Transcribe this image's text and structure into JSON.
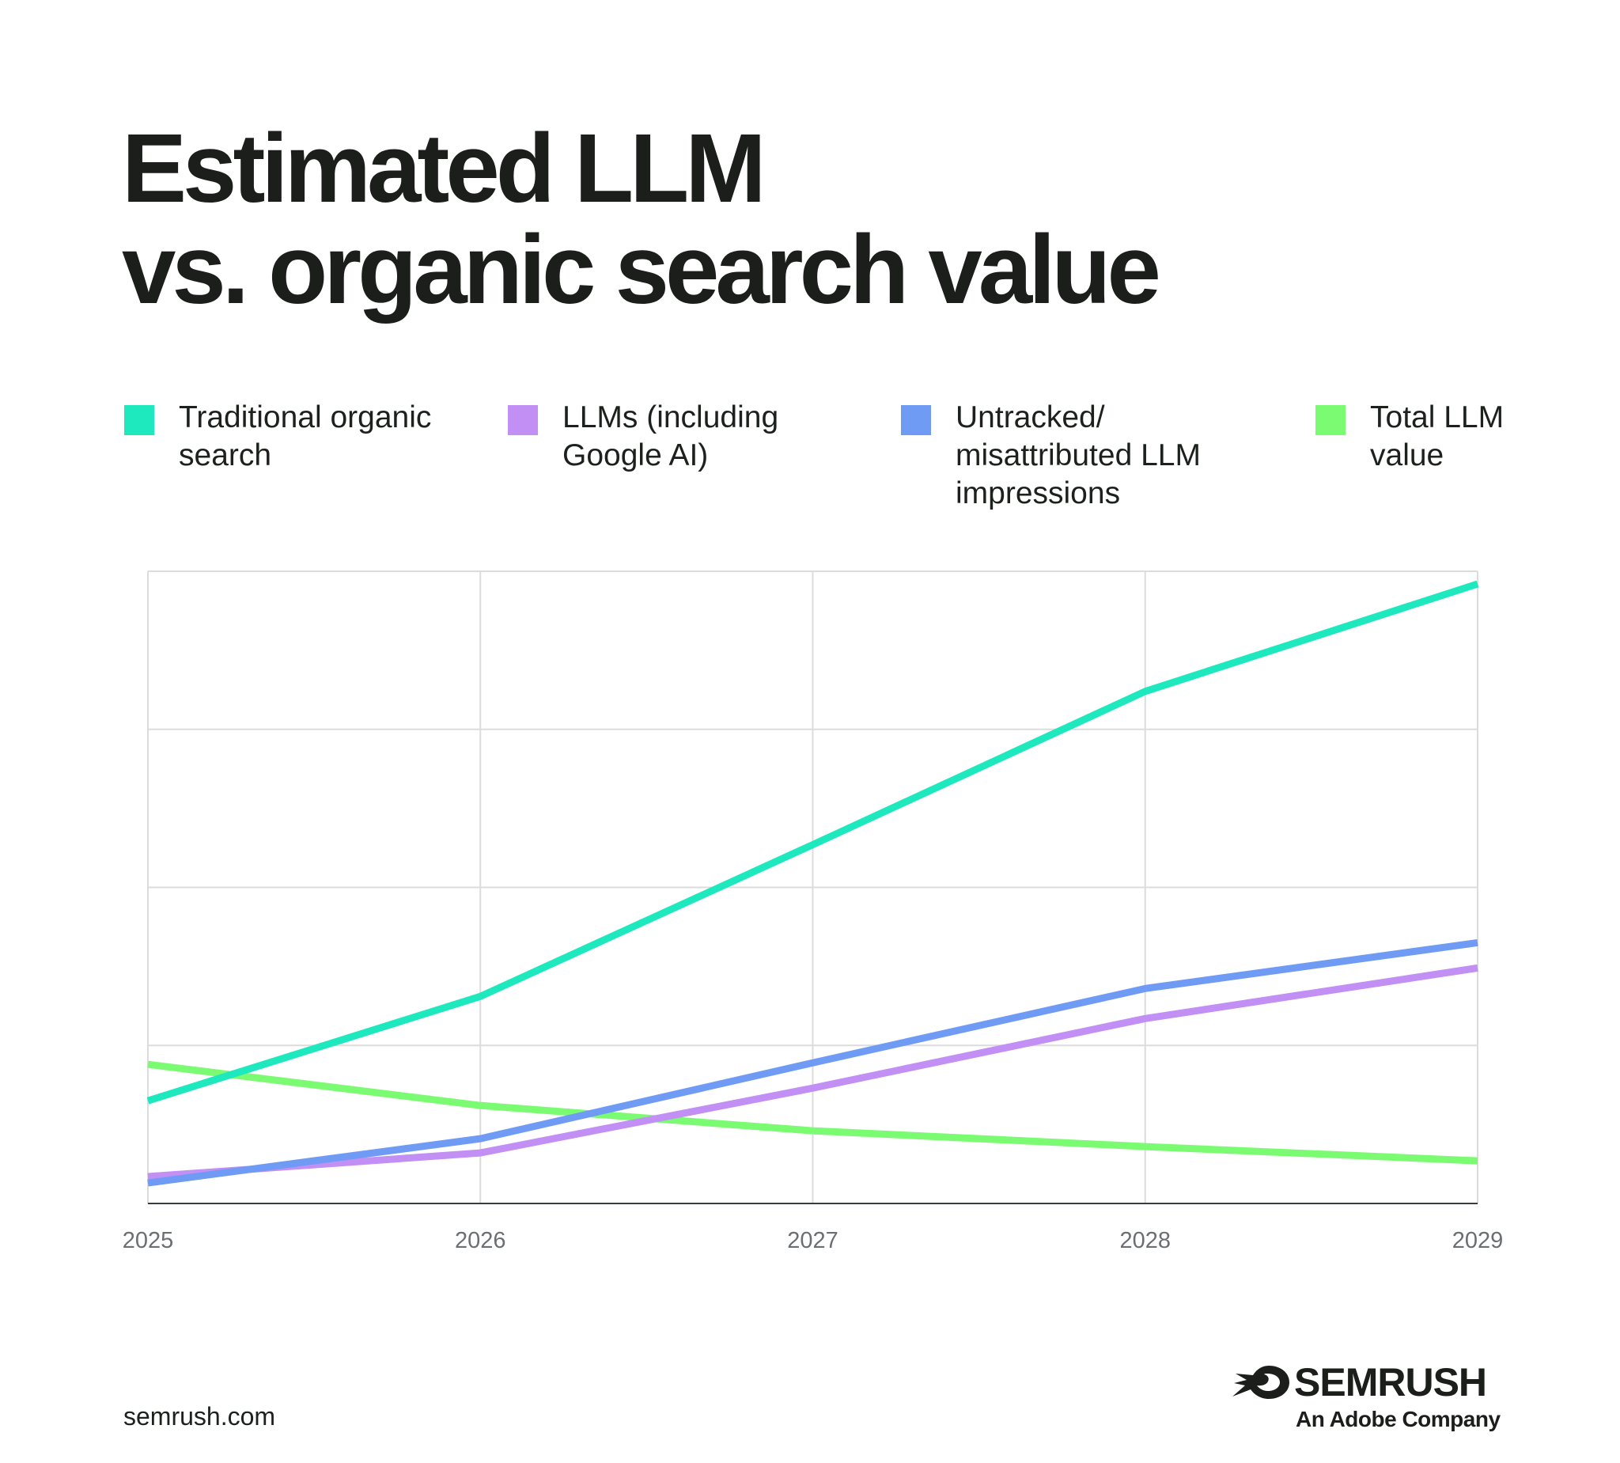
{
  "title_lines": [
    "Estimated LLM",
    "vs. organic search value"
  ],
  "footer": {
    "url": "semrush.com"
  },
  "brand": {
    "name": "SEMRUSH",
    "tagline": "An Adobe Company"
  },
  "chart_data": {
    "type": "line",
    "title": "Estimated LLM vs. organic search value",
    "xlabel": "",
    "ylabel": "",
    "x": [
      "2025",
      "2026",
      "2027",
      "2028",
      "2029"
    ],
    "ylim": [
      0,
      4
    ],
    "grid": true,
    "legend_position": "top",
    "series": [
      {
        "name": "Traditional organic search",
        "color": "#1ee8bd",
        "values": [
          0.65,
          1.31,
          2.27,
          3.24,
          3.92
        ]
      },
      {
        "name": "LLMs (including Google AI)",
        "color": "#c28ff5",
        "values": [
          0.17,
          0.32,
          0.73,
          1.17,
          1.49
        ]
      },
      {
        "name": "Untracked/ misattributed LLM impressions",
        "color": "#6f9bf5",
        "values": [
          0.13,
          0.41,
          0.89,
          1.36,
          1.65
        ]
      },
      {
        "name": "Total LLM value",
        "color": "#7bfb71",
        "values": [
          0.88,
          0.62,
          0.46,
          0.36,
          0.27
        ]
      }
    ]
  }
}
